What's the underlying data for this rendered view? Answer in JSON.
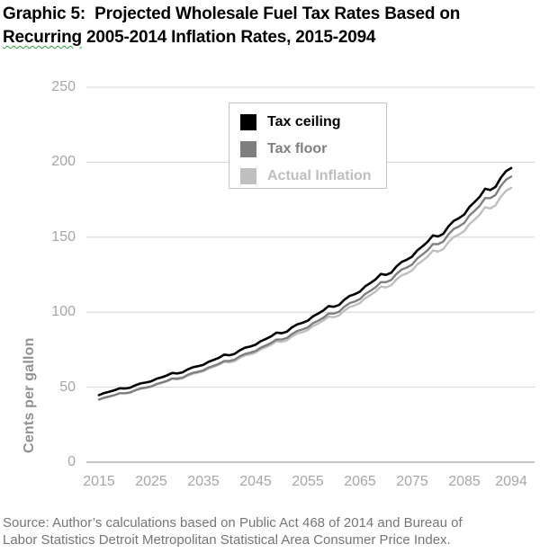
{
  "title": {
    "line1": "Graphic 5:  Projected Wholesale Fuel Tax Rates Based on",
    "line2_flagged_word": "Recurring",
    "line2_rest": " 2005-2014 Inflation Rates, 2015-2094",
    "flag_color": "#2f9e3f"
  },
  "source": {
    "line1": "Source: Author’s calculations based on Public Act 468 of 2014 and Bureau of",
    "line2": "Labor Statistics Detroit Metropolitan Statistical Area Consumer Price Index."
  },
  "chart_data": {
    "type": "line",
    "title": "Graphic 5: Projected Wholesale Fuel Tax Rates Based on Recurring 2005-2014 Inflation Rates, 2015-2094",
    "xlabel": "",
    "ylabel": "Cents per gallon",
    "ylim": [
      0,
      250
    ],
    "grid": "horizontal",
    "gridline_color": "#d9d9d9",
    "axis_line_color": "#b0b0b0",
    "tick_label_color": "#a6a6a6",
    "legend_position": "top-center-inside",
    "y_ticks": [
      250,
      200,
      150,
      100,
      50,
      0
    ],
    "y_tick_labels": [
      "250",
      "200",
      "150",
      "100",
      "50",
      "0"
    ],
    "x_tick_years": [
      2015,
      2025,
      2035,
      2045,
      2055,
      2065,
      2075,
      2085,
      2094
    ],
    "x_tick_labels": [
      "2015",
      "2025",
      "2035",
      "2045",
      "2055",
      "2065",
      "2075",
      "2085",
      "2094"
    ],
    "x": [
      2015,
      2016,
      2017,
      2018,
      2019,
      2020,
      2021,
      2022,
      2023,
      2024,
      2025,
      2026,
      2027,
      2028,
      2029,
      2030,
      2031,
      2032,
      2033,
      2034,
      2035,
      2036,
      2037,
      2038,
      2039,
      2040,
      2041,
      2042,
      2043,
      2044,
      2045,
      2046,
      2047,
      2048,
      2049,
      2050,
      2051,
      2052,
      2053,
      2054,
      2055,
      2056,
      2057,
      2058,
      2059,
      2060,
      2061,
      2062,
      2063,
      2064,
      2065,
      2066,
      2067,
      2068,
      2069,
      2070,
      2071,
      2072,
      2073,
      2074,
      2075,
      2076,
      2077,
      2078,
      2079,
      2080,
      2081,
      2082,
      2083,
      2084,
      2085,
      2086,
      2087,
      2088,
      2089,
      2090,
      2091,
      2092,
      2093,
      2094
    ],
    "series": [
      {
        "name": "Tax ceiling",
        "color": "#000000",
        "values": [
          44.7,
          46.1,
          47.0,
          48.0,
          49.3,
          49.1,
          49.7,
          51.3,
          52.5,
          53.1,
          53.9,
          55.6,
          56.6,
          57.8,
          59.5,
          59.2,
          59.9,
          61.9,
          63.3,
          64.0,
          64.9,
          66.9,
          68.2,
          69.6,
          71.7,
          71.3,
          72.2,
          74.6,
          76.3,
          77.1,
          78.3,
          80.7,
          82.2,
          83.9,
          86.4,
          86.0,
          87.0,
          89.9,
          91.9,
          92.9,
          94.3,
          97.2,
          99.1,
          101.2,
          104.1,
          103.6,
          104.8,
          108.3,
          110.8,
          112.0,
          113.7,
          117.2,
          119.4,
          121.9,
          125.5,
          124.9,
          126.3,
          130.5,
          133.5,
          135.0,
          137.0,
          141.2,
          143.9,
          147.0,
          151.2,
          150.5,
          152.3,
          157.3,
          160.9,
          162.7,
          165.1,
          170.2,
          173.5,
          177.1,
          182.3,
          181.4,
          183.6,
          189.6,
          194.0,
          196.1
        ]
      },
      {
        "name": "Tax floor",
        "color": "#7f7f7f",
        "values": [
          41.7,
          43.0,
          43.8,
          44.7,
          46.0,
          46.0,
          46.6,
          48.1,
          49.2,
          49.8,
          50.5,
          52.1,
          53.1,
          54.2,
          55.8,
          55.8,
          56.4,
          58.3,
          59.6,
          60.3,
          61.2,
          63.1,
          64.3,
          65.6,
          67.5,
          67.5,
          68.4,
          70.6,
          72.2,
          73.0,
          74.1,
          76.4,
          77.9,
          79.5,
          81.8,
          81.8,
          82.8,
          85.5,
          87.5,
          88.5,
          89.8,
          92.6,
          94.3,
          96.3,
          99.1,
          99.1,
          100.3,
          103.6,
          106.0,
          107.1,
          108.7,
          112.1,
          114.2,
          116.6,
          120.0,
          120.0,
          121.5,
          125.5,
          128.4,
          129.8,
          131.7,
          135.8,
          138.4,
          141.3,
          145.4,
          145.4,
          147.1,
          152.0,
          155.5,
          157.2,
          159.5,
          164.5,
          167.6,
          171.1,
          176.1,
          176.1,
          178.2,
          184.1,
          188.3,
          190.4
        ]
      },
      {
        "name": "Actual Inflation",
        "color": "#bfbfbf",
        "values": [
          41.7,
          43.0,
          43.8,
          44.7,
          46.0,
          45.8,
          46.3,
          47.9,
          49.0,
          49.5,
          50.3,
          51.8,
          52.8,
          53.9,
          55.5,
          55.2,
          55.9,
          57.7,
          59.0,
          59.7,
          60.6,
          62.4,
          63.6,
          65.0,
          66.9,
          66.5,
          67.3,
          69.6,
          71.2,
          71.9,
          73.0,
          75.3,
          76.7,
          78.3,
          80.6,
          80.2,
          81.2,
          83.8,
          85.8,
          86.7,
          88.0,
          90.7,
          92.4,
          94.4,
          97.1,
          96.6,
          97.8,
          101.0,
          103.4,
          104.5,
          106.1,
          109.3,
          111.4,
          113.8,
          117.1,
          116.5,
          117.9,
          121.8,
          124.6,
          125.9,
          127.8,
          131.8,
          134.3,
          137.1,
          141.1,
          140.4,
          142.1,
          146.8,
          150.1,
          151.8,
          154.1,
          158.8,
          161.8,
          165.2,
          170.0,
          169.2,
          171.2,
          176.9,
          180.9,
          182.9
        ]
      }
    ]
  }
}
